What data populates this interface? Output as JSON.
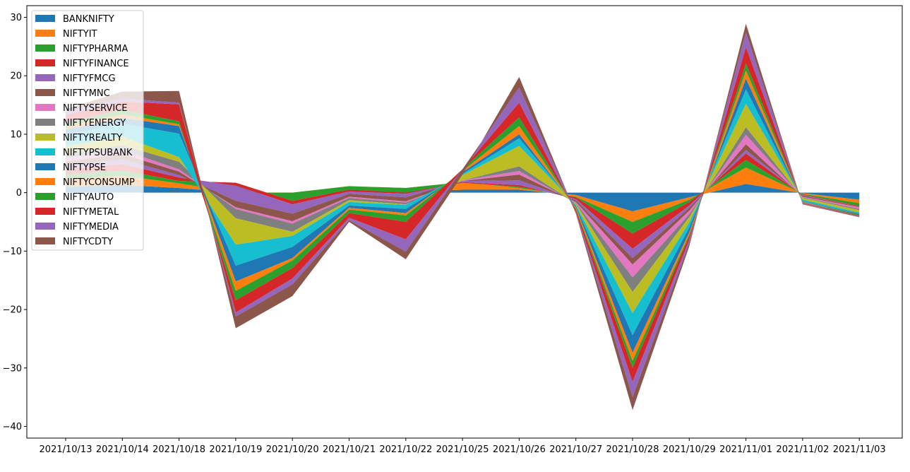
{
  "chart_data": {
    "type": "area",
    "stacked": true,
    "title": "",
    "xlabel": "",
    "ylabel": "",
    "ylim": [
      -42,
      32
    ],
    "y_ticks": [
      -40,
      -30,
      -20,
      -10,
      0,
      10,
      20,
      30
    ],
    "grid": false,
    "legend_position": "top-left",
    "x": [
      "2021/10/13",
      "2021/10/14",
      "2021/10/18",
      "2021/10/19",
      "2021/10/20",
      "2021/10/21",
      "2021/10/22",
      "2021/10/25",
      "2021/10/26",
      "2021/10/27",
      "2021/10/28",
      "2021/10/29",
      "2021/11/01",
      "2021/11/02",
      "2021/11/03"
    ],
    "series": [
      {
        "name": "BANKNIFTY",
        "color": "#1f77b4",
        "values": [
          1.0,
          1.3,
          0.8,
          0.0,
          -0.3,
          -0.2,
          0.2,
          0.5,
          0.5,
          -0.4,
          -3.2,
          -0.8,
          1.5,
          -0.1,
          -1.2
        ]
      },
      {
        "name": "NIFTYIT",
        "color": "#ff7f0e",
        "values": [
          1.3,
          1.6,
          0.8,
          0.0,
          0.3,
          1.3,
          0.6,
          1.3,
          0.3,
          -0.3,
          -1.8,
          -0.4,
          2.8,
          -0.1,
          -0.6
        ]
      },
      {
        "name": "NIFTYPHARMA",
        "color": "#2ca02c",
        "values": [
          0.8,
          0.9,
          0.4,
          1.7,
          -1.4,
          -0.6,
          -0.8,
          -0.1,
          0.2,
          -0.1,
          -2.0,
          -0.4,
          1.3,
          -0.1,
          -0.5
        ]
      },
      {
        "name": "NIFTYFINANCE",
        "color": "#d62728",
        "values": [
          0.9,
          1.1,
          0.6,
          -0.5,
          -0.6,
          -0.3,
          -0.2,
          0.1,
          0.3,
          -0.3,
          -2.6,
          -0.6,
          1.1,
          -0.1,
          -0.1
        ]
      },
      {
        "name": "NIFTYFMCG",
        "color": "#9467bd",
        "values": [
          0.6,
          0.8,
          0.4,
          -2.6,
          -1.6,
          -0.4,
          -0.6,
          0.2,
          0.8,
          -0.2,
          -1.6,
          -0.4,
          0.6,
          -0.1,
          0.0
        ]
      },
      {
        "name": "NIFTYMNC",
        "color": "#8c564b",
        "values": [
          0.7,
          0.9,
          0.6,
          -1.1,
          -1.3,
          -0.5,
          -0.7,
          0.0,
          1.0,
          -0.3,
          -1.1,
          -0.5,
          1.0,
          -0.2,
          -0.1
        ]
      },
      {
        "name": "NIFTYSERVICE",
        "color": "#e377c2",
        "values": [
          0.6,
          0.7,
          0.4,
          -0.3,
          -0.4,
          -0.2,
          -0.2,
          0.1,
          0.6,
          -0.2,
          -2.2,
          -0.6,
          1.6,
          -0.1,
          -0.3
        ]
      },
      {
        "name": "NIFTYENERGY",
        "color": "#7f7f7f",
        "values": [
          0.7,
          0.8,
          1.3,
          -1.6,
          -1.4,
          -0.4,
          -0.3,
          0.0,
          0.8,
          -0.1,
          -2.5,
          -0.5,
          1.3,
          -0.1,
          -0.2
        ]
      },
      {
        "name": "NIFTYREALTY",
        "color": "#bcbd22",
        "values": [
          1.3,
          1.5,
          0.8,
          -4.5,
          -0.7,
          -0.3,
          -0.1,
          0.9,
          3.5,
          -0.2,
          -3.6,
          -0.9,
          4.0,
          -0.3,
          -0.4
        ]
      },
      {
        "name": "NIFTYPSUBANK",
        "color": "#17becf",
        "values": [
          2.0,
          2.2,
          4.0,
          -3.6,
          -1.9,
          -0.6,
          -0.7,
          0.2,
          1.3,
          -0.2,
          -3.8,
          -0.9,
          2.5,
          -0.3,
          -0.2
        ]
      },
      {
        "name": "NIFTYPSE",
        "color": "#1f77b4",
        "values": [
          0.9,
          1.0,
          1.3,
          -2.7,
          -1.9,
          -0.4,
          -0.7,
          0.3,
          0.7,
          -0.2,
          -3.0,
          -0.8,
          1.8,
          -0.1,
          -0.1
        ]
      },
      {
        "name": "NIFTYCONSUMP",
        "color": "#ff7f0e",
        "values": [
          0.5,
          0.6,
          0.3,
          -1.6,
          -0.4,
          -0.3,
          -0.4,
          0.2,
          1.4,
          -0.2,
          -1.4,
          -0.4,
          1.4,
          -0.1,
          0.0
        ]
      },
      {
        "name": "NIFTYAUTO",
        "color": "#2ca02c",
        "values": [
          0.6,
          0.8,
          0.5,
          -1.6,
          -1.3,
          -0.6,
          -1.1,
          0.3,
          1.5,
          -0.2,
          -1.2,
          -0.3,
          1.2,
          0.0,
          -0.2
        ]
      },
      {
        "name": "NIFTYMETAL",
        "color": "#d62728",
        "values": [
          1.4,
          1.4,
          2.9,
          -2.1,
          -1.8,
          -0.8,
          -3.0,
          0.0,
          2.5,
          -0.4,
          -2.4,
          -0.6,
          2.8,
          -0.1,
          -0.1
        ]
      },
      {
        "name": "NIFTYMEDIA",
        "color": "#9467bd",
        "values": [
          0.6,
          0.5,
          0.3,
          -0.7,
          -1.0,
          -0.4,
          -2.1,
          0.0,
          2.6,
          -0.1,
          -2.6,
          -0.6,
          2.5,
          -0.1,
          -0.1
        ]
      },
      {
        "name": "NIFTYCDTY",
        "color": "#8c564b",
        "values": [
          0.4,
          1.2,
          2.0,
          -2.0,
          -2.0,
          -0.3,
          -1.3,
          -0.9,
          1.8,
          -0.2,
          -2.2,
          -0.5,
          1.5,
          -0.1,
          -0.1
        ]
      }
    ]
  }
}
